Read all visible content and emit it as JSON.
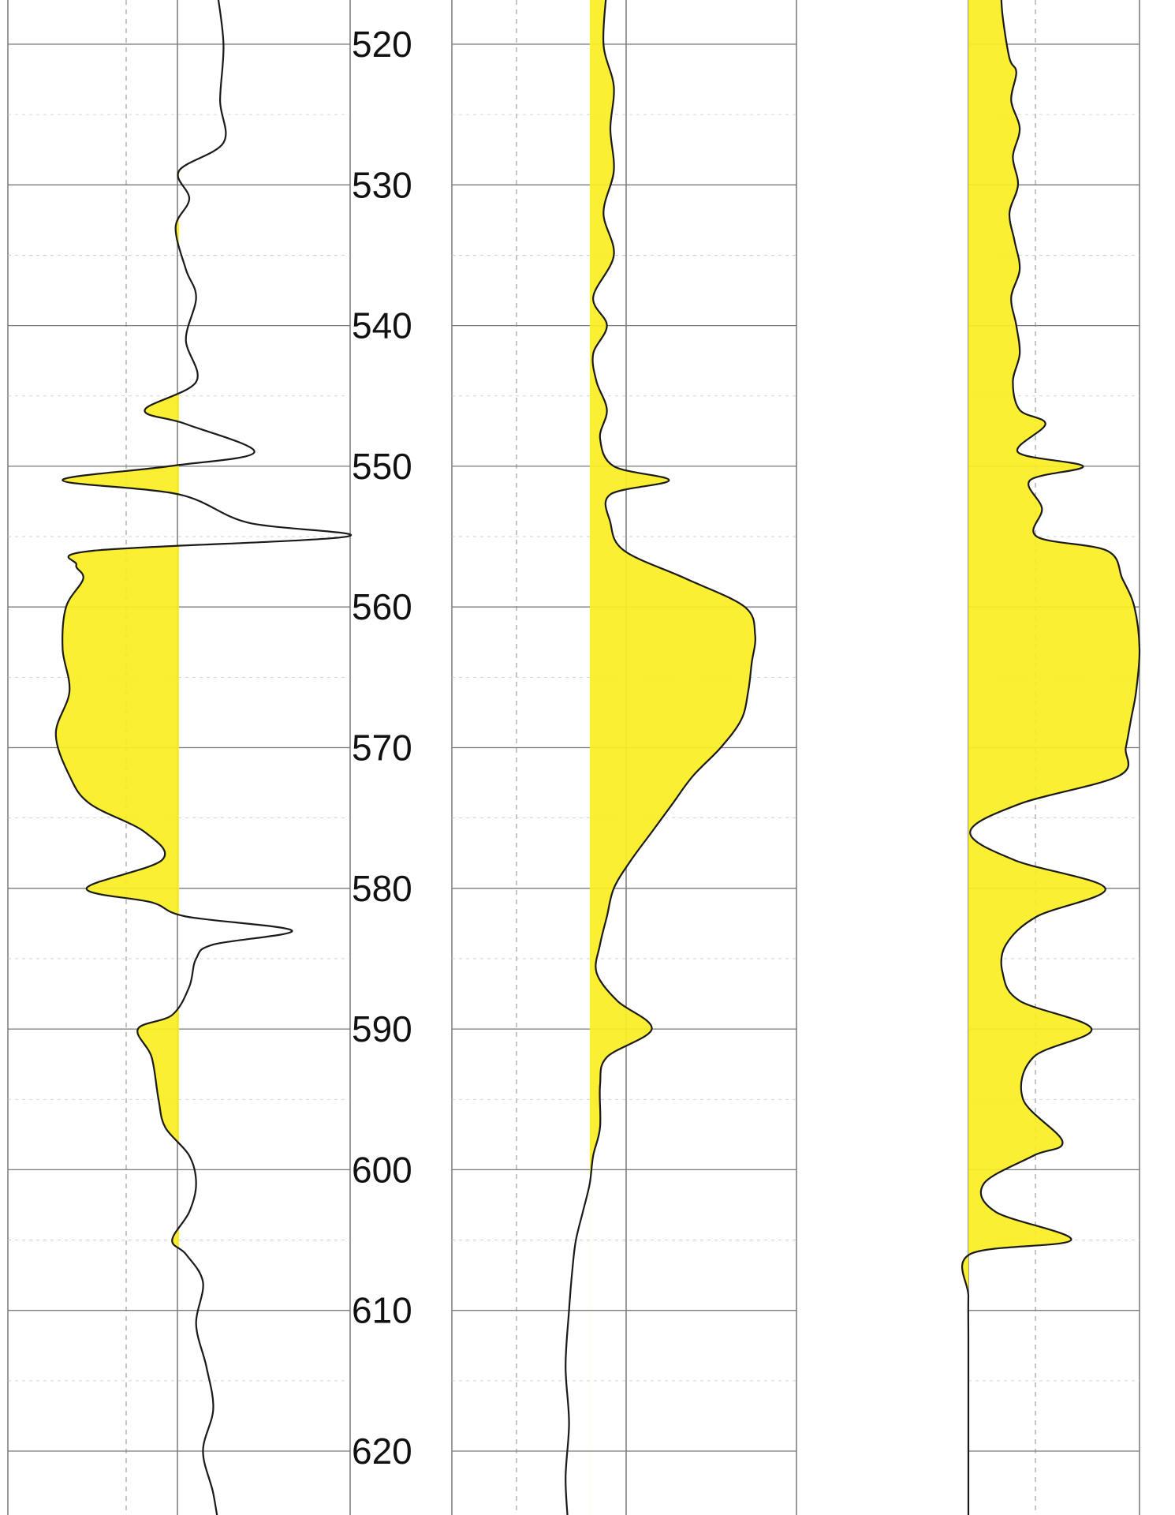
{
  "chart_data": {
    "type": "line",
    "title": "",
    "xlabel": "",
    "ylabel": "",
    "y_axis": {
      "ylim": [
        516,
        626
      ],
      "ticks": [
        520,
        530,
        540,
        550,
        560,
        570,
        580,
        590,
        600,
        610,
        620
      ],
      "tick_labels": [
        "520",
        "530",
        "540",
        "550",
        "560",
        "570",
        "580",
        "590",
        "600",
        "610",
        "620"
      ],
      "minor_step": 5,
      "inverted": true
    },
    "grid": true,
    "tracks": [
      {
        "xlim": [
          0,
          100
        ],
        "baseline": 50,
        "shading": "fill-left-of-baseline",
        "curve": [
          [
            516,
            61
          ],
          [
            520,
            63
          ],
          [
            524,
            62
          ],
          [
            527,
            63
          ],
          [
            529,
            50
          ],
          [
            531,
            53
          ],
          [
            533,
            49
          ],
          [
            536,
            52
          ],
          [
            538,
            55
          ],
          [
            541,
            52
          ],
          [
            544,
            55
          ],
          [
            546,
            40
          ],
          [
            547,
            52
          ],
          [
            549,
            72
          ],
          [
            550,
            47
          ],
          [
            551,
            16
          ],
          [
            552,
            50
          ],
          [
            554,
            70
          ],
          [
            555,
            99
          ],
          [
            556,
            25
          ],
          [
            557,
            20
          ],
          [
            558,
            22
          ],
          [
            560,
            17
          ],
          [
            563,
            16
          ],
          [
            566,
            18
          ],
          [
            569,
            14
          ],
          [
            572,
            18
          ],
          [
            574,
            24
          ],
          [
            576,
            40
          ],
          [
            578,
            45
          ],
          [
            580,
            23
          ],
          [
            581,
            42
          ],
          [
            582,
            52
          ],
          [
            583,
            83
          ],
          [
            584,
            60
          ],
          [
            585,
            55
          ],
          [
            587,
            53
          ],
          [
            589,
            48
          ],
          [
            590,
            38
          ],
          [
            592,
            42
          ],
          [
            595,
            44
          ],
          [
            597,
            46
          ],
          [
            599,
            53
          ],
          [
            601,
            55
          ],
          [
            603,
            53
          ],
          [
            605,
            48
          ],
          [
            606,
            52
          ],
          [
            608,
            57
          ],
          [
            611,
            55
          ],
          [
            614,
            58
          ],
          [
            617,
            60
          ],
          [
            620,
            57
          ],
          [
            623,
            60
          ],
          [
            626,
            62
          ]
        ]
      },
      {
        "xlim": [
          0,
          100
        ],
        "baseline": 40,
        "shading": "fill-right-of-baseline",
        "curve": [
          [
            516,
            45
          ],
          [
            520,
            44
          ],
          [
            523,
            47
          ],
          [
            526,
            46
          ],
          [
            529,
            47
          ],
          [
            532,
            44
          ],
          [
            535,
            47
          ],
          [
            538,
            41
          ],
          [
            540,
            45
          ],
          [
            542,
            41
          ],
          [
            544,
            42
          ],
          [
            546,
            45
          ],
          [
            548,
            43
          ],
          [
            550,
            47
          ],
          [
            551,
            63
          ],
          [
            552,
            46
          ],
          [
            554,
            46
          ],
          [
            556,
            50
          ],
          [
            558,
            68
          ],
          [
            560,
            85
          ],
          [
            562,
            88
          ],
          [
            564,
            87
          ],
          [
            566,
            86
          ],
          [
            568,
            84
          ],
          [
            570,
            78
          ],
          [
            572,
            70
          ],
          [
            574,
            64
          ],
          [
            576,
            58
          ],
          [
            578,
            52
          ],
          [
            580,
            47
          ],
          [
            582,
            45
          ],
          [
            584,
            43
          ],
          [
            586,
            42
          ],
          [
            588,
            48
          ],
          [
            590,
            58
          ],
          [
            592,
            45
          ],
          [
            594,
            43
          ],
          [
            597,
            43
          ],
          [
            599,
            41
          ],
          [
            601,
            40
          ],
          [
            603,
            38
          ],
          [
            605,
            36
          ],
          [
            607,
            35
          ],
          [
            610,
            34
          ],
          [
            614,
            33
          ],
          [
            618,
            34
          ],
          [
            622,
            33
          ],
          [
            626,
            34
          ]
        ]
      },
      {
        "xlim": [
          0,
          100
        ],
        "baseline": 0,
        "shading": "fill-left-of-curve",
        "curve": [
          [
            516,
            19
          ],
          [
            518,
            20
          ],
          [
            521,
            24
          ],
          [
            522,
            28
          ],
          [
            524,
            25
          ],
          [
            526,
            30
          ],
          [
            528,
            26
          ],
          [
            530,
            29
          ],
          [
            532,
            24
          ],
          [
            534,
            27
          ],
          [
            536,
            30
          ],
          [
            538,
            25
          ],
          [
            540,
            28
          ],
          [
            542,
            30
          ],
          [
            544,
            26
          ],
          [
            546,
            30
          ],
          [
            547,
            45
          ],
          [
            549,
            29
          ],
          [
            550,
            67
          ],
          [
            551,
            36
          ],
          [
            553,
            43
          ],
          [
            555,
            40
          ],
          [
            556,
            81
          ],
          [
            558,
            90
          ],
          [
            560,
            97
          ],
          [
            563,
            100
          ],
          [
            566,
            98
          ],
          [
            568,
            95
          ],
          [
            570,
            92
          ],
          [
            572,
            88
          ],
          [
            574,
            30
          ],
          [
            576,
            1
          ],
          [
            578,
            27
          ],
          [
            580,
            80
          ],
          [
            582,
            40
          ],
          [
            584,
            22
          ],
          [
            586,
            20
          ],
          [
            588,
            30
          ],
          [
            590,
            72
          ],
          [
            592,
            38
          ],
          [
            595,
            32
          ],
          [
            598,
            55
          ],
          [
            599,
            38
          ],
          [
            601,
            9
          ],
          [
            603,
            16
          ],
          [
            605,
            60
          ],
          [
            606,
            1
          ],
          [
            609,
            0
          ],
          [
            612,
            0
          ],
          [
            615,
            0
          ],
          [
            618,
            0
          ],
          [
            622,
            0
          ],
          [
            626,
            0
          ]
        ]
      }
    ]
  }
}
